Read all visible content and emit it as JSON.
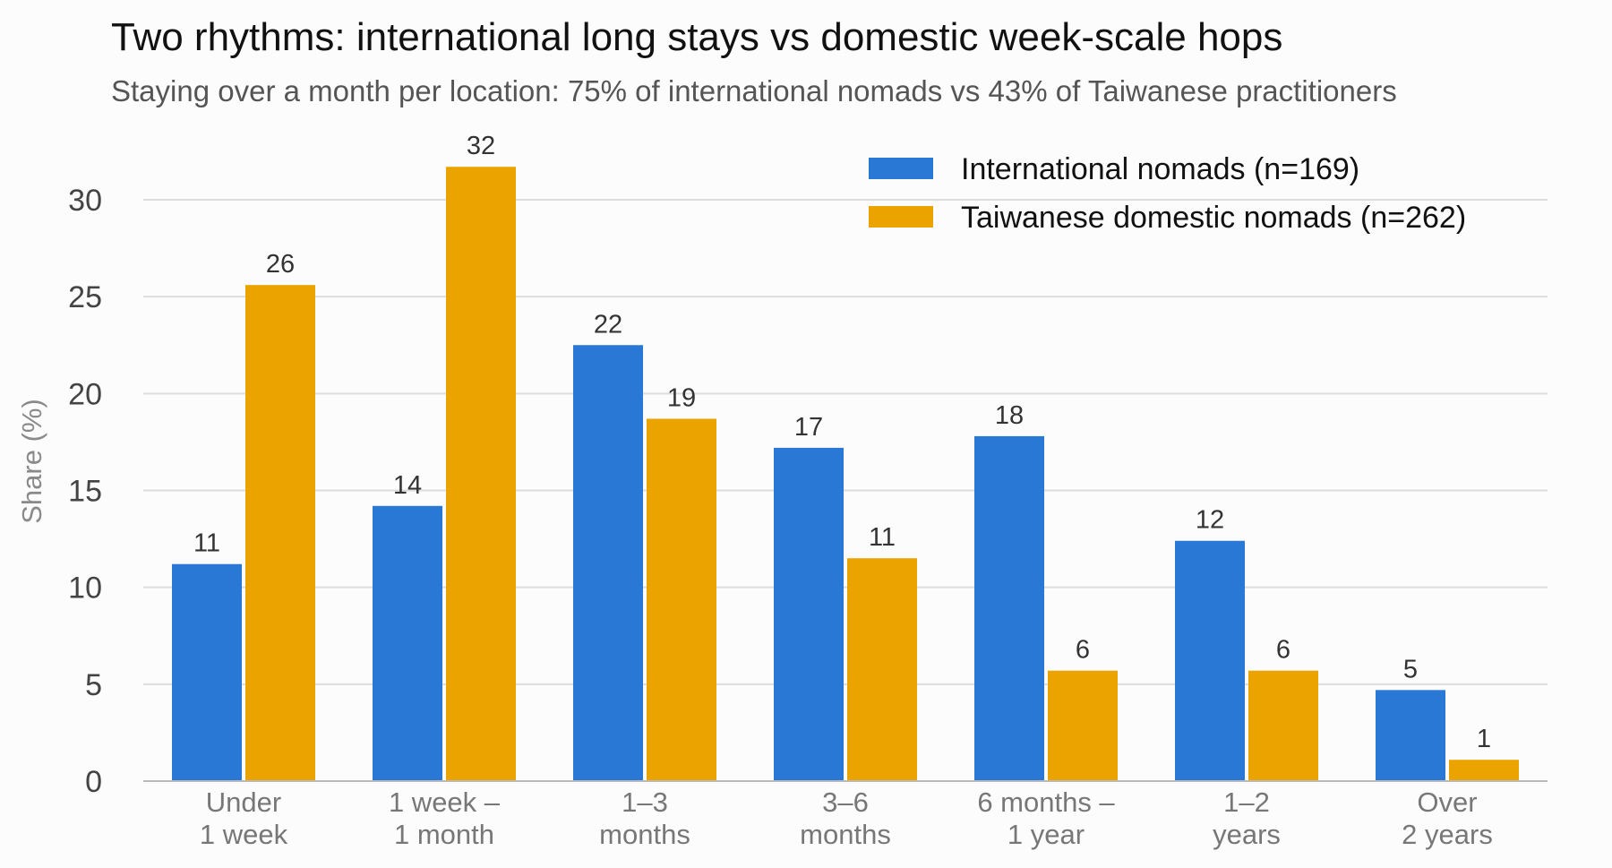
{
  "chart_data": {
    "type": "bar",
    "title": "Two rhythms: international long stays vs domestic week-scale hops",
    "subtitle": "Staying over a month per location: 75% of international nomads vs 43% of Taiwanese practitioners",
    "ylabel": "Share (%)",
    "xlabel": "",
    "ylim": [
      0,
      33
    ],
    "yticks": [
      0,
      5,
      10,
      15,
      20,
      25,
      30
    ],
    "grid": true,
    "legend_position": "top-right",
    "categories": [
      [
        "Under",
        "1 week"
      ],
      [
        "1 week –",
        "1 month"
      ],
      [
        "1–3",
        "months"
      ],
      [
        "3–6",
        "months"
      ],
      [
        "6 months –",
        "1 year"
      ],
      [
        "1–2",
        "years"
      ],
      [
        "Over",
        "2 years"
      ]
    ],
    "series": [
      {
        "name": "International nomads (n=169)",
        "color": "#2a78d6",
        "values": [
          11.2,
          14.2,
          22.5,
          17.2,
          17.8,
          12.4,
          4.7
        ],
        "labels": [
          "11",
          "14",
          "22",
          "17",
          "18",
          "12",
          "5"
        ]
      },
      {
        "name": "Taiwanese domestic nomads (n=262)",
        "color": "#eba300",
        "values": [
          25.6,
          31.7,
          18.7,
          11.5,
          5.7,
          5.7,
          1.1
        ],
        "labels": [
          "26",
          "32",
          "19",
          "11",
          "6",
          "6",
          "1"
        ]
      }
    ]
  }
}
